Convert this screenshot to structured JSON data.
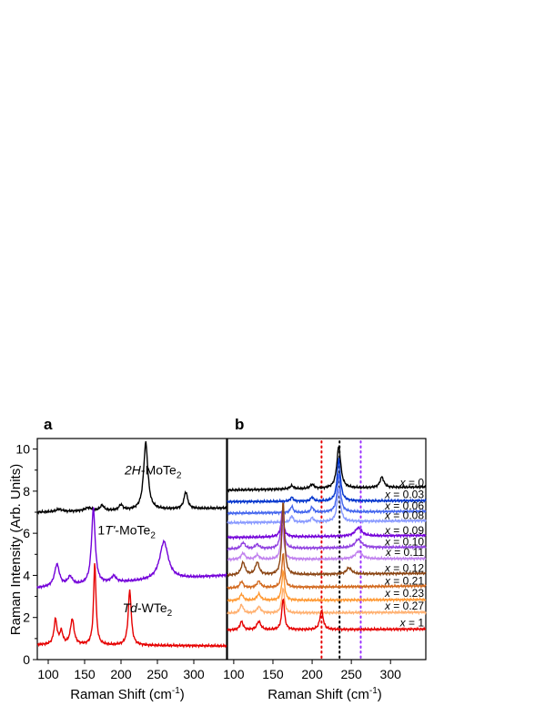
{
  "chart_data": [
    {
      "panel_label": "a",
      "type": "line",
      "xlabel": "Raman Shift (cm",
      "xlabel_sup": "-1",
      "ylabel": "Raman Intensity (Arb. Units)",
      "xlim": [
        85,
        345
      ],
      "ylim": [
        0,
        10.5
      ],
      "xticks": [
        100,
        150,
        200,
        250,
        300
      ],
      "yticks": [
        0,
        2,
        4,
        6,
        8,
        10
      ],
      "series": [
        {
          "label_parts": [
            {
              "t": "2H",
              "italic": true
            },
            {
              "t": "-MoTe"
            },
            {
              "t": "2",
              "sub": true
            }
          ],
          "color": "#000000",
          "baseline": 7.0,
          "end": 7.2,
          "peaks": [
            [
              115,
              0.12,
              5
            ],
            [
              155,
              0.15,
              6
            ],
            [
              174,
              0.25,
              3
            ],
            [
              200,
              0.25,
              3
            ],
            [
              234,
              3.2,
              3.5
            ],
            [
              289,
              0.8,
              3
            ]
          ]
        },
        {
          "label_parts": [
            {
              "t": "1"
            },
            {
              "t": "T'",
              "italic": true
            },
            {
              "t": "-MoTe"
            },
            {
              "t": "2",
              "sub": true
            }
          ],
          "color": "#7300d9",
          "baseline": 3.4,
          "end": 4.0,
          "peaks": [
            [
              112,
              1.05,
              4
            ],
            [
              130,
              0.4,
              4
            ],
            [
              162,
              3.6,
              3
            ],
            [
              190,
              0.3,
              4
            ],
            [
              259,
              1.8,
              7
            ]
          ]
        },
        {
          "label_parts": [
            {
              "t": "Td",
              "italic": true
            },
            {
              "t": "-WTe"
            },
            {
              "t": "2",
              "sub": true
            }
          ],
          "color": "#e60000",
          "baseline": 0.7,
          "end": 0.65,
          "peaks": [
            [
              110,
              1.2,
              2.5
            ],
            [
              118,
              0.6,
              2.5
            ],
            [
              133,
              1.2,
              3
            ],
            [
              164,
              3.9,
              2
            ],
            [
              212,
              2.6,
              2.5
            ]
          ]
        }
      ]
    },
    {
      "panel_label": "b",
      "type": "line",
      "xlabel": "Raman Shift (cm",
      "xlabel_sup": "-1",
      "xlim": [
        92,
        345
      ],
      "ylim": [
        0,
        10.5
      ],
      "xticks": [
        100,
        150,
        200,
        250,
        300
      ],
      "vlines": [
        {
          "x": 212,
          "color": "#e60000"
        },
        {
          "x": 235,
          "color": "#000000"
        },
        {
          "x": 262,
          "color": "#9b30ff"
        }
      ],
      "series": [
        {
          "label": "x = 0",
          "color": "#000000",
          "baseline": 8.05,
          "end": 8.2,
          "peaks": [
            [
              234,
              2.0,
              3
            ],
            [
              289,
              0.5,
              3
            ],
            [
              200,
              0.2,
              3
            ],
            [
              174,
              0.15,
              3
            ]
          ]
        },
        {
          "label": "x = 0.03",
          "color": "#0033cc",
          "baseline": 7.5,
          "end": 7.55,
          "peaks": [
            [
              234,
              2.0,
              2.5
            ],
            [
              174,
              0.2,
              2
            ],
            [
              200,
              0.2,
              2
            ]
          ]
        },
        {
          "label": "x = 0.06",
          "color": "#4466ee",
          "baseline": 6.95,
          "end": 7.05,
          "peaks": [
            [
              234,
              1.8,
              2.5
            ],
            [
              174,
              0.3,
              2
            ],
            [
              200,
              0.25,
              2
            ]
          ]
        },
        {
          "label": "x = 0.08",
          "color": "#8899ff",
          "baseline": 6.5,
          "end": 6.6,
          "peaks": [
            [
              234,
              1.6,
              2.5
            ],
            [
              174,
              0.3,
              2
            ],
            [
              200,
              0.2,
              2
            ]
          ]
        },
        {
          "label": "x = 0.09",
          "color": "#7300d9",
          "baseline": 5.8,
          "end": 5.9,
          "peaks": [
            [
              162,
              0.9,
              2.5
            ],
            [
              259,
              0.4,
              5
            ]
          ]
        },
        {
          "label": "x = 0.10",
          "color": "#9040e0",
          "baseline": 5.25,
          "end": 5.35,
          "peaks": [
            [
              112,
              0.3,
              3
            ],
            [
              130,
              0.2,
              3
            ],
            [
              162,
              1.8,
              2.2
            ],
            [
              259,
              0.4,
              5
            ]
          ]
        },
        {
          "label": "x = 0.11",
          "color": "#c080ee",
          "baseline": 4.75,
          "end": 4.8,
          "peaks": [
            [
              112,
              0.3,
              3
            ],
            [
              130,
              0.2,
              3
            ],
            [
              162,
              1.6,
              2.2
            ],
            [
              259,
              0.35,
              5
            ]
          ]
        },
        {
          "label": "x = 0.12",
          "color": "#8b4513",
          "baseline": 4.0,
          "end": 4.1,
          "peaks": [
            [
              112,
              0.6,
              3
            ],
            [
              130,
              0.6,
              3
            ],
            [
              163,
              3.5,
              2
            ],
            [
              247,
              0.3,
              4
            ]
          ]
        },
        {
          "label": "x = 0.21",
          "color": "#d2691e",
          "baseline": 3.4,
          "end": 3.5,
          "peaks": [
            [
              110,
              0.3,
              2.5
            ],
            [
              132,
              0.3,
              3
            ],
            [
              163,
              1.6,
              2
            ]
          ]
        },
        {
          "label": "x = 0.23",
          "color": "#ff9933",
          "baseline": 2.8,
          "end": 2.85,
          "peaks": [
            [
              110,
              0.3,
              2.5
            ],
            [
              132,
              0.3,
              3
            ],
            [
              163,
              1.4,
              2
            ]
          ]
        },
        {
          "label": "x = 0.27",
          "color": "#ffb070",
          "baseline": 2.2,
          "end": 2.25,
          "peaks": [
            [
              110,
              0.4,
              2.5
            ],
            [
              132,
              0.3,
              3
            ],
            [
              163,
              1.2,
              2
            ]
          ]
        },
        {
          "label": "x = 1",
          "color": "#e60000",
          "baseline": 1.4,
          "end": 1.45,
          "peaks": [
            [
              110,
              0.4,
              2.5
            ],
            [
              132,
              0.4,
              3
            ],
            [
              163,
              1.5,
              2
            ],
            [
              212,
              0.9,
              2.5
            ]
          ]
        }
      ]
    }
  ]
}
